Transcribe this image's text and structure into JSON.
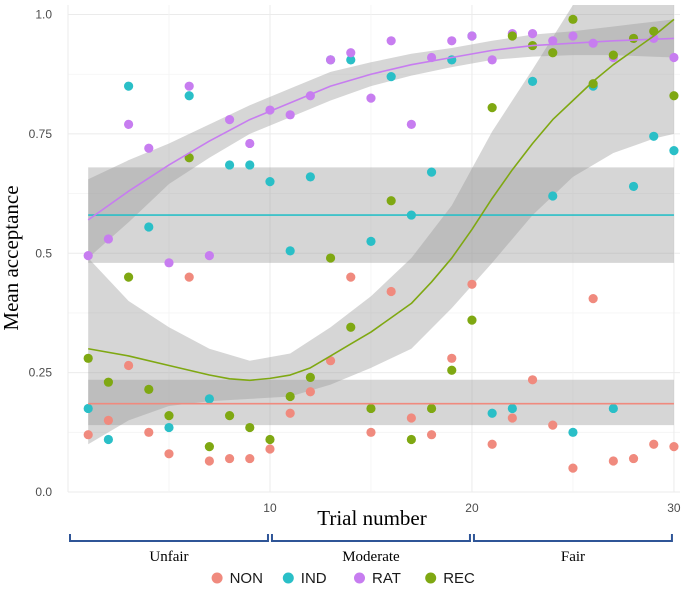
{
  "chart_data": {
    "type": "scatter",
    "xlabel": "Trial number",
    "ylabel": "Mean acceptance",
    "xlim": [
      0,
      30.3
    ],
    "ylim": [
      0,
      1.02
    ],
    "x_ticks": [
      10,
      20,
      30
    ],
    "x_tick_labels": [
      "10",
      "20",
      "30"
    ],
    "y_ticks": [
      0,
      0.25,
      0.5,
      0.75,
      1
    ],
    "y_tick_labels": [
      "0.0",
      "0.25",
      "0.5",
      "0.75",
      "1.0"
    ],
    "grid": true,
    "legend_position": "bottom",
    "phases": [
      {
        "label": "Unfair",
        "from": 0,
        "to": 10
      },
      {
        "label": "Moderate",
        "from": 10,
        "to": 20
      },
      {
        "label": "Fair",
        "from": 20,
        "to": 30
      }
    ],
    "series": [
      {
        "name": "NON",
        "color": "#f08a7e",
        "points": [
          [
            1,
            0.12
          ],
          [
            2,
            0.15
          ],
          [
            3,
            0.265
          ],
          [
            4,
            0.125
          ],
          [
            5,
            0.08
          ],
          [
            6,
            0.45
          ],
          [
            7,
            0.065
          ],
          [
            8,
            0.07
          ],
          [
            9,
            0.07
          ],
          [
            10,
            0.09
          ],
          [
            11,
            0.165
          ],
          [
            12,
            0.21
          ],
          [
            13,
            0.275
          ],
          [
            14,
            0.45
          ],
          [
            15,
            0.125
          ],
          [
            16,
            0.42
          ],
          [
            17,
            0.155
          ],
          [
            18,
            0.12
          ],
          [
            19,
            0.28
          ],
          [
            20,
            0.435
          ],
          [
            21,
            0.1
          ],
          [
            22,
            0.155
          ],
          [
            23,
            0.235
          ],
          [
            24,
            0.14
          ],
          [
            25,
            0.05
          ],
          [
            26,
            0.405
          ],
          [
            27,
            0.065
          ],
          [
            28,
            0.07
          ],
          [
            29,
            0.1
          ],
          [
            30,
            0.095
          ]
        ],
        "fit": [
          [
            1,
            0.185
          ],
          [
            30,
            0.185
          ]
        ],
        "band": [
          [
            1,
            0.14,
            0.235
          ],
          [
            30,
            0.14,
            0.235
          ]
        ]
      },
      {
        "name": "IND",
        "color": "#2abfc7",
        "points": [
          [
            1,
            0.175
          ],
          [
            2,
            0.11
          ],
          [
            3,
            0.85
          ],
          [
            4,
            0.555
          ],
          [
            5,
            0.135
          ],
          [
            6,
            0.83
          ],
          [
            7,
            0.195
          ],
          [
            8,
            0.685
          ],
          [
            9,
            0.685
          ],
          [
            10,
            0.65
          ],
          [
            11,
            0.505
          ],
          [
            12,
            0.66
          ],
          [
            13,
            0.905
          ],
          [
            14,
            0.905
          ],
          [
            15,
            0.525
          ],
          [
            16,
            0.87
          ],
          [
            17,
            0.58
          ],
          [
            18,
            0.67
          ],
          [
            19,
            0.905
          ],
          [
            20,
            0.955
          ],
          [
            21,
            0.165
          ],
          [
            22,
            0.175
          ],
          [
            23,
            0.86
          ],
          [
            24,
            0.62
          ],
          [
            25,
            0.125
          ],
          [
            26,
            0.85
          ],
          [
            27,
            0.175
          ],
          [
            28,
            0.64
          ],
          [
            29,
            0.745
          ],
          [
            30,
            0.715
          ]
        ],
        "fit": [
          [
            1,
            0.58
          ],
          [
            30,
            0.58
          ]
        ],
        "band": [
          [
            1,
            0.48,
            0.68
          ],
          [
            30,
            0.48,
            0.68
          ]
        ]
      },
      {
        "name": "RAT",
        "color": "#c77df0",
        "points": [
          [
            1,
            0.495
          ],
          [
            2,
            0.53
          ],
          [
            3,
            0.77
          ],
          [
            4,
            0.72
          ],
          [
            5,
            0.48
          ],
          [
            6,
            0.85
          ],
          [
            7,
            0.495
          ],
          [
            8,
            0.78
          ],
          [
            9,
            0.73
          ],
          [
            10,
            0.8
          ],
          [
            11,
            0.79
          ],
          [
            12,
            0.83
          ],
          [
            13,
            0.905
          ],
          [
            14,
            0.92
          ],
          [
            15,
            0.825
          ],
          [
            16,
            0.945
          ],
          [
            17,
            0.77
          ],
          [
            18,
            0.91
          ],
          [
            19,
            0.945
          ],
          [
            20,
            0.955
          ],
          [
            21,
            0.905
          ],
          [
            22,
            0.96
          ],
          [
            23,
            0.96
          ],
          [
            24,
            0.945
          ],
          [
            25,
            0.955
          ],
          [
            26,
            0.94
          ],
          [
            27,
            0.91
          ],
          [
            28,
            0.95
          ],
          [
            29,
            0.95
          ],
          [
            30,
            0.91
          ]
        ],
        "fit": [
          [
            1,
            0.57
          ],
          [
            3,
            0.63
          ],
          [
            5,
            0.685
          ],
          [
            7,
            0.735
          ],
          [
            9,
            0.78
          ],
          [
            11,
            0.815
          ],
          [
            13,
            0.85
          ],
          [
            15,
            0.875
          ],
          [
            17,
            0.895
          ],
          [
            19,
            0.91
          ],
          [
            21,
            0.925
          ],
          [
            23,
            0.935
          ],
          [
            25,
            0.94
          ],
          [
            27,
            0.945
          ],
          [
            30,
            0.95
          ]
        ],
        "band": [
          [
            1,
            0.49,
            0.655
          ],
          [
            3,
            0.565,
            0.695
          ],
          [
            5,
            0.645,
            0.73
          ],
          [
            7,
            0.7,
            0.77
          ],
          [
            9,
            0.75,
            0.81
          ],
          [
            11,
            0.785,
            0.845
          ],
          [
            13,
            0.82,
            0.88
          ],
          [
            15,
            0.85,
            0.9
          ],
          [
            17,
            0.872,
            0.918
          ],
          [
            19,
            0.89,
            0.93
          ],
          [
            21,
            0.905,
            0.945
          ],
          [
            23,
            0.912,
            0.958
          ],
          [
            25,
            0.915,
            0.965
          ],
          [
            27,
            0.915,
            0.975
          ],
          [
            30,
            0.91,
            0.99
          ]
        ]
      },
      {
        "name": "REC",
        "color": "#7fa812",
        "points": [
          [
            1,
            0.28
          ],
          [
            2,
            0.23
          ],
          [
            3,
            0.45
          ],
          [
            4,
            0.215
          ],
          [
            5,
            0.16
          ],
          [
            6,
            0.7
          ],
          [
            7,
            0.095
          ],
          [
            8,
            0.16
          ],
          [
            9,
            0.135
          ],
          [
            10,
            0.11
          ],
          [
            11,
            0.2
          ],
          [
            12,
            0.24
          ],
          [
            13,
            0.49
          ],
          [
            14,
            0.345
          ],
          [
            15,
            0.175
          ],
          [
            16,
            0.61
          ],
          [
            17,
            0.11
          ],
          [
            18,
            0.175
          ],
          [
            19,
            0.255
          ],
          [
            20,
            0.36
          ],
          [
            21,
            0.805
          ],
          [
            22,
            0.955
          ],
          [
            23,
            0.935
          ],
          [
            24,
            0.92
          ],
          [
            25,
            0.99
          ],
          [
            26,
            0.855
          ],
          [
            27,
            0.915
          ],
          [
            28,
            0.95
          ],
          [
            29,
            0.965
          ],
          [
            30,
            0.83
          ]
        ],
        "fit": [
          [
            1,
            0.3
          ],
          [
            3,
            0.285
          ],
          [
            5,
            0.265
          ],
          [
            7,
            0.245
          ],
          [
            8,
            0.237
          ],
          [
            9,
            0.234
          ],
          [
            10,
            0.238
          ],
          [
            11,
            0.245
          ],
          [
            12,
            0.26
          ],
          [
            13,
            0.285
          ],
          [
            14,
            0.31
          ],
          [
            15,
            0.335
          ],
          [
            16,
            0.365
          ],
          [
            17,
            0.395
          ],
          [
            18,
            0.44
          ],
          [
            19,
            0.49
          ],
          [
            20,
            0.55
          ],
          [
            21,
            0.615
          ],
          [
            22,
            0.675
          ],
          [
            23,
            0.73
          ],
          [
            24,
            0.78
          ],
          [
            25,
            0.82
          ],
          [
            26,
            0.86
          ],
          [
            27,
            0.895
          ],
          [
            28,
            0.925
          ],
          [
            29,
            0.955
          ],
          [
            30,
            0.99
          ]
        ],
        "band": [
          [
            1,
            0.1,
            0.49
          ],
          [
            3,
            0.15,
            0.4
          ],
          [
            5,
            0.18,
            0.345
          ],
          [
            7,
            0.19,
            0.3
          ],
          [
            9,
            0.195,
            0.275
          ],
          [
            11,
            0.2,
            0.29
          ],
          [
            13,
            0.225,
            0.345
          ],
          [
            15,
            0.26,
            0.41
          ],
          [
            17,
            0.3,
            0.49
          ],
          [
            19,
            0.385,
            0.6
          ],
          [
            21,
            0.48,
            0.755
          ],
          [
            23,
            0.58,
            0.885
          ],
          [
            25,
            0.66,
            1.02
          ],
          [
            27,
            0.71,
            1.02
          ],
          [
            29,
            0.74,
            1.02
          ],
          [
            30,
            0.75,
            1.02
          ]
        ]
      }
    ]
  }
}
